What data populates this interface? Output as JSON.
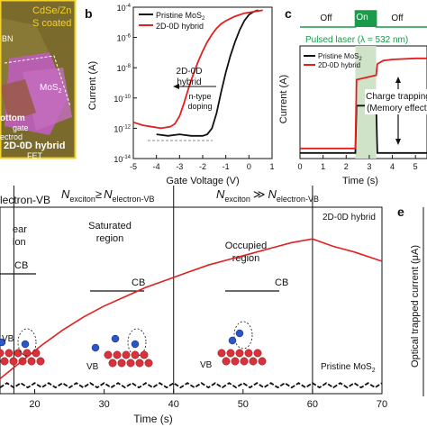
{
  "panel_a": {
    "title_lines": [
      "CdSe/Zn",
      "S coated"
    ],
    "labels": {
      "bn": "BN",
      "mos": "MoS",
      "mos_sub": "2",
      "bottom": "ottom",
      "gate": "gate",
      "electrode": "ectrod",
      "hybrid": "2D-0D hybrid",
      "fet": "FET"
    },
    "colors": {
      "bg": "#7a6a2c",
      "flake": "#b85fb0",
      "border": "#f2d22a"
    }
  },
  "panel_b": {
    "letter": "b",
    "xlabel": "Gate Voltage (V)",
    "ylabel": "Current (A)",
    "x_ticks": [
      "-5",
      "-4",
      "-3",
      "-2",
      "-1",
      "0",
      "1"
    ],
    "y_ticks": [
      {
        "base": "10",
        "exp": "-4"
      },
      {
        "base": "10",
        "exp": "-6"
      },
      {
        "base": "10",
        "exp": "-8"
      },
      {
        "base": "10",
        "exp": "-10"
      },
      {
        "base": "10",
        "exp": "-12"
      },
      {
        "base": "10",
        "exp": "-14"
      }
    ],
    "legend": [
      {
        "name": "Pristine MoS",
        "sub": "2",
        "color": "#111111"
      },
      {
        "name": "2D-0D hybrid",
        "sub": "",
        "color": "#e02020"
      }
    ],
    "annotation_lines": [
      "2D-0D",
      "hybrid"
    ],
    "annotation2_lines": [
      "n-type",
      "doping"
    ]
  },
  "panel_c": {
    "letter": "c",
    "xlabel": "Time (s)",
    "ylabel": "Current (A)",
    "x_ticks": [
      "0",
      "1",
      "2",
      "3",
      "4",
      "5"
    ],
    "off1": "Off",
    "on": "On",
    "off2": "Off",
    "laser_label": "Pulsed laser (λ = 532 nm)",
    "legend": [
      {
        "name": "Pristine MoS",
        "sub": "2",
        "color": "#111111"
      },
      {
        "name": "2D-0D hybrid",
        "sub": "",
        "color": "#e02020"
      }
    ],
    "annotation_lines": [
      "Charge trapping",
      "(Memory effect)"
    ],
    "colors": {
      "laser": "#1a9a4a",
      "on_band": "#cfe3c8"
    }
  },
  "panel_d": {
    "header_left": {
      "main": "lectron-VB"
    },
    "header_mid": {
      "n1": "N",
      "s1": "exciton",
      "rel": "≥",
      "n2": "N",
      "s2": "electron-VB"
    },
    "header_right": {
      "n1": "N",
      "s1": "exciton",
      "rel": "≫",
      "n2": "N",
      "s2": "electron-VB"
    },
    "regions": {
      "linear": [
        "ear",
        "ion"
      ],
      "saturated": [
        "Saturated",
        "region"
      ],
      "occupied": [
        "Occupied",
        "region"
      ]
    },
    "cb_label": "CB",
    "vb_label": "VB",
    "hybrid_label": "2D-0D hybrid",
    "pristine_label": {
      "main": "Pristine MoS",
      "sub": "2"
    },
    "xlabel": "Time (s)",
    "x_ticks": [
      "20",
      "30",
      "40",
      "50",
      "60",
      "70"
    ]
  },
  "panel_e": {
    "letter": "e",
    "ylabel": "Optical trapped current (μA)"
  },
  "chart_data": [
    {
      "type": "line",
      "panel": "b",
      "xlabel": "Gate Voltage (V)",
      "ylabel": "Current (A)",
      "xlim": [
        -5,
        1
      ],
      "ylim_log10": [
        -14,
        -4
      ],
      "series": [
        {
          "name": "Pristine MoS2",
          "x": [
            -4.0,
            -3.5,
            -3.0,
            -2.5,
            -2.0,
            -1.8,
            -1.6,
            -1.4,
            -1.2,
            -1.0,
            -0.8,
            -0.6,
            -0.4,
            -0.2,
            0.0,
            0.2,
            0.4
          ],
          "log10_y": [
            -12.4,
            -12.5,
            -12.4,
            -12.5,
            -12.5,
            -12.4,
            -12.0,
            -11.0,
            -9.6,
            -8.3,
            -7.2,
            -6.3,
            -5.5,
            -4.9,
            -4.5,
            -4.3,
            -4.2
          ]
        },
        {
          "name": "2D-0D hybrid",
          "x": [
            -5.0,
            -4.6,
            -4.2,
            -3.8,
            -3.4,
            -3.2,
            -3.0,
            -2.8,
            -2.6,
            -2.4,
            -2.2,
            -2.0,
            -1.8,
            -1.6,
            -1.4,
            -1.2,
            -1.0,
            -0.6,
            -0.2,
            0.2,
            0.6
          ],
          "log10_y": [
            -11.6,
            -11.8,
            -11.9,
            -12.0,
            -11.9,
            -11.7,
            -11.2,
            -10.3,
            -9.3,
            -8.4,
            -7.6,
            -6.9,
            -6.3,
            -5.8,
            -5.4,
            -5.1,
            -4.9,
            -4.6,
            -4.4,
            -4.3,
            -4.2
          ]
        }
      ]
    },
    {
      "type": "line",
      "panel": "c",
      "xlabel": "Time (s)",
      "ylabel": "Current (A)",
      "xlim": [
        0,
        5.5
      ],
      "on_interval": [
        2.4,
        3.3
      ],
      "series": [
        {
          "name": "Pristine MoS2",
          "x": [
            0,
            2.4,
            2.45,
            3.3,
            3.35,
            5.5
          ],
          "y_rel": [
            0.05,
            0.05,
            0.47,
            0.47,
            0.05,
            0.05
          ]
        },
        {
          "name": "2D-0D hybrid",
          "x": [
            0,
            2.4,
            2.45,
            3.3,
            3.35,
            3.6,
            4.0,
            5.0,
            5.5
          ],
          "y_rel": [
            0.09,
            0.09,
            0.7,
            0.74,
            0.84,
            0.87,
            0.88,
            0.89,
            0.89
          ]
        }
      ]
    },
    {
      "type": "line",
      "panel": "d",
      "xlabel": "Time (s)",
      "xlim": [
        15,
        70
      ],
      "region_boundaries": [
        17,
        40,
        60
      ],
      "series": [
        {
          "name": "2D-0D hybrid",
          "x": [
            15,
            18,
            21,
            24,
            27,
            30,
            33,
            36,
            39,
            42,
            45,
            48,
            51,
            54,
            57,
            60,
            63,
            66,
            70
          ],
          "y_rel": [
            0.08,
            0.17,
            0.26,
            0.34,
            0.41,
            0.47,
            0.52,
            0.57,
            0.61,
            0.65,
            0.69,
            0.72,
            0.75,
            0.78,
            0.81,
            0.83,
            0.79,
            0.76,
            0.71
          ]
        },
        {
          "name": "Pristine MoS2",
          "x": [
            15,
            70
          ],
          "y_rel": [
            0.045,
            0.045
          ]
        }
      ]
    }
  ]
}
